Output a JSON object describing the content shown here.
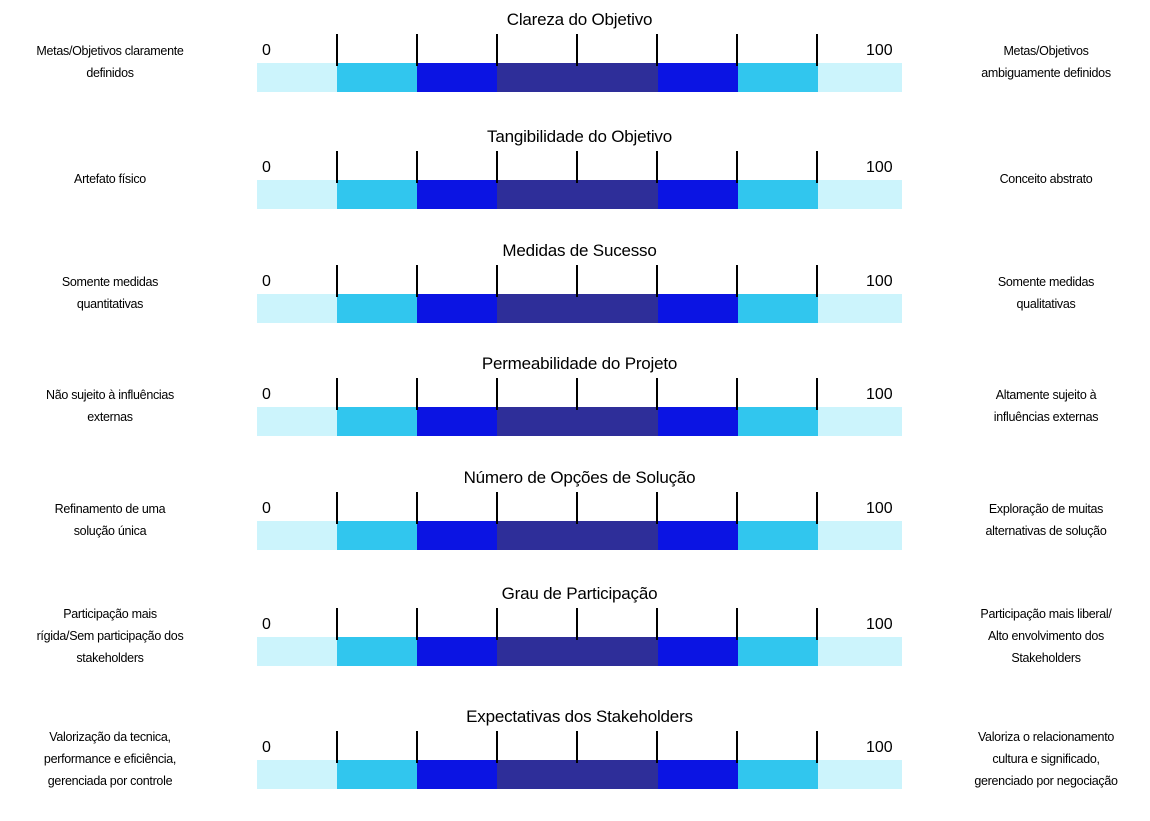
{
  "scale_min": "0",
  "scale_max": "100",
  "segment_colors": [
    "#ccf4fc",
    "#31c6ee",
    "#0b14e3",
    "#2e2e99",
    "#0b14e3",
    "#31c6ee",
    "#ccf4fc"
  ],
  "scales": [
    {
      "title": "Clareza do Objetivo",
      "left_lines": [
        "Metas/Objetivos claramente",
        "definidos"
      ],
      "right_lines": [
        "Metas/Objetivos",
        "ambiguamente definidos"
      ]
    },
    {
      "title": "Tangibilidade do Objetivo",
      "left_lines": [
        "Artefato físico"
      ],
      "right_lines": [
        "Conceito abstrato"
      ]
    },
    {
      "title": "Medidas de Sucesso",
      "left_lines": [
        "Somente medidas",
        "quantitativas"
      ],
      "right_lines": [
        "Somente medidas",
        "qualitativas"
      ]
    },
    {
      "title": "Permeabilidade do Projeto",
      "left_lines": [
        "Não sujeito à influências",
        "externas"
      ],
      "right_lines": [
        "Altamente sujeito à",
        "influências externas"
      ]
    },
    {
      "title": "Número de Opções de Solução",
      "left_lines": [
        "Refinamento de uma",
        "solução única"
      ],
      "right_lines": [
        "Exploração de muitas",
        "alternativas de solução"
      ]
    },
    {
      "title": "Grau de Participação",
      "left_lines": [
        "Participação mais",
        "rígida/Sem participação dos",
        "stakeholders"
      ],
      "right_lines": [
        "Participação mais liberal/",
        "Alto envolvimento dos",
        "Stakeholders"
      ]
    },
    {
      "title": "Expectativas dos Stakeholders",
      "left_lines": [
        "Valorização da tecnica,",
        "performance e eficiência,",
        "gerenciada por controle"
      ],
      "right_lines": [
        "Valoriza o relacionamento",
        "cultura e significado,",
        "gerenciado por negociação"
      ]
    }
  ]
}
